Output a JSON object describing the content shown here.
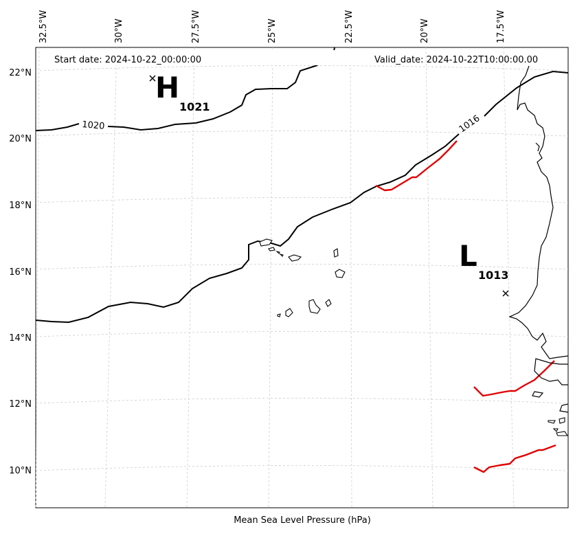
{
  "map": {
    "start_date_text": "Start date: 2024-10-22_00:00:00",
    "valid_date_text": "Valid_date: 2024-10-22T10:00:00.00",
    "caption": "Mean Sea Level Pressure (hPa)",
    "longitude_ticks": [
      "32.5°W",
      "30°W",
      "27.5°W",
      "25°W",
      "22.5°W",
      "20°W",
      "17.5°W"
    ],
    "latitude_ticks": [
      "22°N",
      "20°N",
      "18°N",
      "16°N",
      "14°N",
      "12°N",
      "10°N"
    ],
    "isobar_labels": [
      "1020",
      "1016"
    ],
    "pressure_centers": [
      {
        "type": "H",
        "value": "1021"
      },
      {
        "type": "L",
        "value": "1013"
      }
    ],
    "colors": {
      "isobar": "#000000",
      "front": "#e00000",
      "grid": "#cccccc"
    }
  }
}
